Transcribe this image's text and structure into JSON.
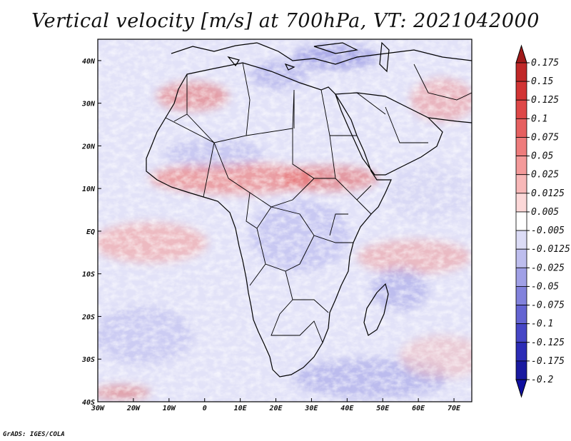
{
  "title": "Vertical velocity [m/s] at 700hPa, VT: 2021042000",
  "credit": "GrADS: IGES/COLA",
  "map": {
    "region": "Africa, Arabian Peninsula and western Indian Ocean",
    "lon_range": [
      -30,
      75
    ],
    "lat_range": [
      -40,
      45
    ],
    "x_tick_labels": [
      "30W",
      "20W",
      "10W",
      "0",
      "10E",
      "20E",
      "30E",
      "40E",
      "50E",
      "60E",
      "70E"
    ],
    "x_tick_values": [
      -30,
      -20,
      -10,
      0,
      10,
      20,
      30,
      40,
      50,
      60,
      70
    ],
    "y_tick_labels": [
      "40S",
      "30S",
      "20S",
      "10S",
      "EQ",
      "10N",
      "20N",
      "30N",
      "40N"
    ],
    "y_tick_values": [
      -40,
      -30,
      -20,
      -10,
      0,
      10,
      20,
      30,
      40
    ]
  },
  "colorbar": {
    "labels": [
      "0.175",
      "0.15",
      "0.125",
      "0.1",
      "0.075",
      "0.05",
      "0.025",
      "0.0125",
      "0.005",
      "-0.005",
      "-0.0125",
      "-0.025",
      "-0.05",
      "-0.075",
      "-0.1",
      "-0.125",
      "-0.175",
      "-0.2"
    ],
    "colors": [
      "#a01a1a",
      "#c02828",
      "#d23434",
      "#de4848",
      "#e66060",
      "#ee7c7c",
      "#f49a9a",
      "#f8b8b8",
      "#fcd8d8",
      "#ffffff",
      "#dcdcf6",
      "#bebeee",
      "#a0a0e6",
      "#8282dc",
      "#6464d2",
      "#4646c6",
      "#2c2cb6",
      "#1a1aa0",
      "#1010a0"
    ]
  }
}
